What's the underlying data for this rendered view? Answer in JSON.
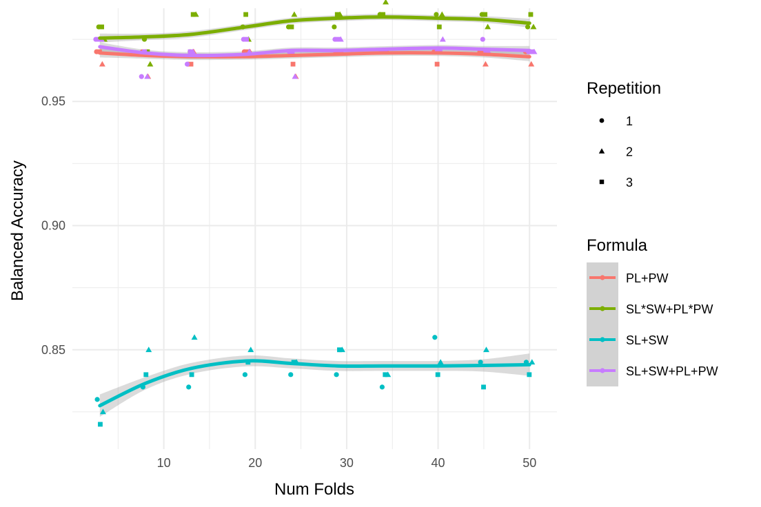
{
  "chart_data": {
    "type": "scatter",
    "xlabel": "Num Folds",
    "ylabel": "Balanced Accuracy",
    "xlim": [
      0,
      53
    ],
    "ylim": [
      0.81,
      0.9875
    ],
    "x_ticks": [
      10,
      20,
      30,
      40,
      50
    ],
    "x_tick_labels": [
      "10",
      "20",
      "30",
      "40",
      "50"
    ],
    "y_ticks": [
      0.85,
      0.9,
      0.95
    ],
    "y_tick_labels": [
      "0.85",
      "0.90",
      "0.95"
    ],
    "grid": true,
    "legend_position": "right",
    "legends": {
      "repetition": {
        "title": "Repetition",
        "entries": [
          "1",
          "2",
          "3"
        ],
        "shapes": [
          "circle",
          "triangle",
          "square"
        ]
      },
      "formula": {
        "title": "Formula",
        "entries": [
          "PL+PW",
          "SL*SW+PL*PW",
          "SL+SW",
          "SL+SW+PL+PW"
        ]
      }
    },
    "series": [
      {
        "name": "PL+PW",
        "color": "#F8766D",
        "points": [
          {
            "x": 3,
            "y": 0.97,
            "rep": 1
          },
          {
            "x": 3,
            "y": 0.965,
            "rep": 2
          },
          {
            "x": 3,
            "y": 0.97,
            "rep": 3
          },
          {
            "x": 8,
            "y": 0.97,
            "rep": 1
          },
          {
            "x": 8,
            "y": 0.96,
            "rep": 2
          },
          {
            "x": 8,
            "y": 0.97,
            "rep": 3
          },
          {
            "x": 13,
            "y": 0.965,
            "rep": 1
          },
          {
            "x": 13,
            "y": 0.97,
            "rep": 2
          },
          {
            "x": 13,
            "y": 0.965,
            "rep": 3
          },
          {
            "x": 19,
            "y": 0.97,
            "rep": 1
          },
          {
            "x": 19,
            "y": 0.97,
            "rep": 2
          },
          {
            "x": 19,
            "y": 0.97,
            "rep": 3
          },
          {
            "x": 24,
            "y": 0.97,
            "rep": 1
          },
          {
            "x": 24,
            "y": 0.96,
            "rep": 2
          },
          {
            "x": 24,
            "y": 0.965,
            "rep": 3
          },
          {
            "x": 29,
            "y": 0.97,
            "rep": 1
          },
          {
            "x": 29,
            "y": 0.97,
            "rep": 2
          },
          {
            "x": 29,
            "y": 0.97,
            "rep": 3
          },
          {
            "x": 34,
            "y": 0.97,
            "rep": 1
          },
          {
            "x": 34,
            "y": 0.97,
            "rep": 2
          },
          {
            "x": 34,
            "y": 0.97,
            "rep": 3
          },
          {
            "x": 40,
            "y": 0.97,
            "rep": 1
          },
          {
            "x": 40,
            "y": 0.97,
            "rep": 2
          },
          {
            "x": 40,
            "y": 0.965,
            "rep": 3
          },
          {
            "x": 45,
            "y": 0.97,
            "rep": 1
          },
          {
            "x": 45,
            "y": 0.965,
            "rep": 2
          },
          {
            "x": 45,
            "y": 0.97,
            "rep": 3
          },
          {
            "x": 50,
            "y": 0.97,
            "rep": 1
          },
          {
            "x": 50,
            "y": 0.965,
            "rep": 2
          },
          {
            "x": 50,
            "y": 0.97,
            "rep": 3
          }
        ],
        "smooth": {
          "x": [
            3,
            8,
            13,
            19,
            24,
            29,
            34,
            40,
            45,
            50
          ],
          "y": [
            0.9695,
            0.9685,
            0.968,
            0.968,
            0.9685,
            0.969,
            0.9695,
            0.9695,
            0.969,
            0.968
          ],
          "se": [
            0.0018,
            0.0013,
            0.0013,
            0.0012,
            0.0012,
            0.0012,
            0.0012,
            0.0012,
            0.0013,
            0.0018
          ]
        }
      },
      {
        "name": "SL*SW+PL*PW",
        "color": "#7CAE00",
        "points": [
          {
            "x": 3,
            "y": 0.98,
            "rep": 1
          },
          {
            "x": 3,
            "y": 0.975,
            "rep": 2
          },
          {
            "x": 3,
            "y": 0.98,
            "rep": 3
          },
          {
            "x": 8,
            "y": 0.975,
            "rep": 1
          },
          {
            "x": 8,
            "y": 0.965,
            "rep": 2
          },
          {
            "x": 8,
            "y": 0.97,
            "rep": 3
          },
          {
            "x": 13,
            "y": 0.97,
            "rep": 1
          },
          {
            "x": 13,
            "y": 0.985,
            "rep": 2
          },
          {
            "x": 13,
            "y": 0.985,
            "rep": 3
          },
          {
            "x": 19,
            "y": 0.98,
            "rep": 1
          },
          {
            "x": 19,
            "y": 0.975,
            "rep": 2
          },
          {
            "x": 19,
            "y": 0.985,
            "rep": 3
          },
          {
            "x": 24,
            "y": 0.98,
            "rep": 1
          },
          {
            "x": 24,
            "y": 0.985,
            "rep": 2
          },
          {
            "x": 24,
            "y": 0.98,
            "rep": 3
          },
          {
            "x": 29,
            "y": 0.98,
            "rep": 1
          },
          {
            "x": 29,
            "y": 0.985,
            "rep": 2
          },
          {
            "x": 29,
            "y": 0.985,
            "rep": 3
          },
          {
            "x": 34,
            "y": 0.985,
            "rep": 1
          },
          {
            "x": 34,
            "y": 0.99,
            "rep": 2
          },
          {
            "x": 34,
            "y": 0.985,
            "rep": 3
          },
          {
            "x": 40,
            "y": 0.985,
            "rep": 1
          },
          {
            "x": 40,
            "y": 0.985,
            "rep": 2
          },
          {
            "x": 40,
            "y": 0.98,
            "rep": 3
          },
          {
            "x": 45,
            "y": 0.985,
            "rep": 1
          },
          {
            "x": 45,
            "y": 0.98,
            "rep": 2
          },
          {
            "x": 45,
            "y": 0.985,
            "rep": 3
          },
          {
            "x": 50,
            "y": 0.98,
            "rep": 1
          },
          {
            "x": 50,
            "y": 0.98,
            "rep": 2
          },
          {
            "x": 50,
            "y": 0.985,
            "rep": 3
          }
        ],
        "smooth": {
          "x": [
            3,
            8,
            13,
            19,
            24,
            29,
            34,
            40,
            45,
            50
          ],
          "y": [
            0.9755,
            0.976,
            0.977,
            0.98,
            0.9825,
            0.9835,
            0.984,
            0.9835,
            0.983,
            0.9815
          ],
          "se": [
            0.0018,
            0.0013,
            0.0013,
            0.0012,
            0.0012,
            0.0012,
            0.0012,
            0.0012,
            0.0013,
            0.0018
          ]
        }
      },
      {
        "name": "SL+SW",
        "color": "#00BFC4",
        "points": [
          {
            "x": 3,
            "y": 0.83,
            "rep": 1
          },
          {
            "x": 3,
            "y": 0.825,
            "rep": 2
          },
          {
            "x": 3,
            "y": 0.82,
            "rep": 3
          },
          {
            "x": 8,
            "y": 0.835,
            "rep": 1
          },
          {
            "x": 8,
            "y": 0.85,
            "rep": 2
          },
          {
            "x": 8,
            "y": 0.84,
            "rep": 3
          },
          {
            "x": 13,
            "y": 0.835,
            "rep": 1
          },
          {
            "x": 13,
            "y": 0.855,
            "rep": 2
          },
          {
            "x": 13,
            "y": 0.84,
            "rep": 3
          },
          {
            "x": 19,
            "y": 0.84,
            "rep": 1
          },
          {
            "x": 19,
            "y": 0.85,
            "rep": 2
          },
          {
            "x": 19,
            "y": 0.845,
            "rep": 3
          },
          {
            "x": 24,
            "y": 0.84,
            "rep": 1
          },
          {
            "x": 24,
            "y": 0.845,
            "rep": 2
          },
          {
            "x": 24,
            "y": 0.845,
            "rep": 3
          },
          {
            "x": 29,
            "y": 0.84,
            "rep": 1
          },
          {
            "x": 29,
            "y": 0.85,
            "rep": 2
          },
          {
            "x": 29,
            "y": 0.85,
            "rep": 3
          },
          {
            "x": 34,
            "y": 0.835,
            "rep": 1
          },
          {
            "x": 34,
            "y": 0.84,
            "rep": 2
          },
          {
            "x": 34,
            "y": 0.84,
            "rep": 3
          },
          {
            "x": 40,
            "y": 0.855,
            "rep": 1
          },
          {
            "x": 40,
            "y": 0.845,
            "rep": 2
          },
          {
            "x": 40,
            "y": 0.84,
            "rep": 3
          },
          {
            "x": 45,
            "y": 0.845,
            "rep": 1
          },
          {
            "x": 45,
            "y": 0.85,
            "rep": 2
          },
          {
            "x": 45,
            "y": 0.835,
            "rep": 3
          },
          {
            "x": 50,
            "y": 0.845,
            "rep": 1
          },
          {
            "x": 50,
            "y": 0.845,
            "rep": 2
          },
          {
            "x": 50,
            "y": 0.84,
            "rep": 3
          }
        ],
        "smooth": {
          "x": [
            3,
            8,
            13,
            19,
            24,
            29,
            34,
            40,
            45,
            50
          ],
          "y": [
            0.8275,
            0.8365,
            0.8425,
            0.8455,
            0.8445,
            0.8435,
            0.8435,
            0.8435,
            0.8437,
            0.844
          ],
          "se": [
            0.0045,
            0.0025,
            0.0022,
            0.0022,
            0.002,
            0.002,
            0.002,
            0.002,
            0.0025,
            0.0045
          ]
        }
      },
      {
        "name": "SL+SW+PL+PW",
        "color": "#C77CFF",
        "points": [
          {
            "x": 3,
            "y": 0.975,
            "rep": 1
          },
          {
            "x": 3,
            "y": 0.975,
            "rep": 2
          },
          {
            "x": 3,
            "y": 0.975,
            "rep": 3
          },
          {
            "x": 8,
            "y": 0.96,
            "rep": 1
          },
          {
            "x": 8,
            "y": 0.96,
            "rep": 2
          },
          {
            "x": 8,
            "y": 0.97,
            "rep": 3
          },
          {
            "x": 13,
            "y": 0.965,
            "rep": 1
          },
          {
            "x": 13,
            "y": 0.97,
            "rep": 2
          },
          {
            "x": 13,
            "y": 0.97,
            "rep": 3
          },
          {
            "x": 19,
            "y": 0.975,
            "rep": 1
          },
          {
            "x": 19,
            "y": 0.97,
            "rep": 2
          },
          {
            "x": 19,
            "y": 0.975,
            "rep": 3
          },
          {
            "x": 24,
            "y": 0.97,
            "rep": 1
          },
          {
            "x": 24,
            "y": 0.96,
            "rep": 2
          },
          {
            "x": 24,
            "y": 0.97,
            "rep": 3
          },
          {
            "x": 29,
            "y": 0.975,
            "rep": 1
          },
          {
            "x": 29,
            "y": 0.975,
            "rep": 2
          },
          {
            "x": 29,
            "y": 0.975,
            "rep": 3
          },
          {
            "x": 34,
            "y": 0.97,
            "rep": 1
          },
          {
            "x": 34,
            "y": 0.97,
            "rep": 2
          },
          {
            "x": 34,
            "y": 0.97,
            "rep": 3
          },
          {
            "x": 40,
            "y": 0.97,
            "rep": 1
          },
          {
            "x": 40,
            "y": 0.975,
            "rep": 2
          },
          {
            "x": 40,
            "y": 0.97,
            "rep": 3
          },
          {
            "x": 45,
            "y": 0.975,
            "rep": 1
          },
          {
            "x": 45,
            "y": 0.97,
            "rep": 2
          },
          {
            "x": 45,
            "y": 0.97,
            "rep": 3
          },
          {
            "x": 50,
            "y": 0.97,
            "rep": 1
          },
          {
            "x": 50,
            "y": 0.97,
            "rep": 2
          },
          {
            "x": 50,
            "y": 0.97,
            "rep": 3
          }
        ],
        "smooth": {
          "x": [
            3,
            8,
            13,
            19,
            24,
            29,
            34,
            40,
            45,
            50
          ],
          "y": [
            0.972,
            0.9695,
            0.9685,
            0.969,
            0.9705,
            0.9705,
            0.971,
            0.9715,
            0.971,
            0.9705
          ],
          "se": [
            0.0018,
            0.0013,
            0.0013,
            0.0012,
            0.0012,
            0.0012,
            0.0012,
            0.0012,
            0.0013,
            0.0018
          ]
        }
      }
    ]
  }
}
